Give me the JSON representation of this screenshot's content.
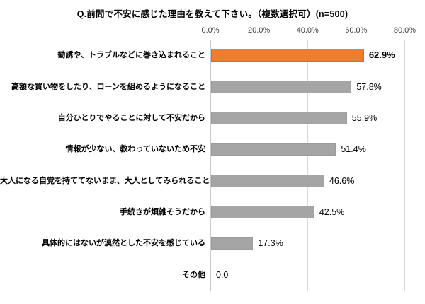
{
  "title": "Q.前問で不安に感じた理由を教えて下さい。（複数選択可）(n=500)",
  "chart_data": {
    "type": "bar",
    "orientation": "horizontal",
    "title": "Q.前問で不安に感じた理由を教えて下さい。（複数選択可）(n=500)",
    "sample_size_note": "n=500",
    "categories": [
      "勧誘や、トラブルなどに巻き込まれること",
      "高額な買い物をしたり、ローンを組めるようになること",
      "自分ひとりでやることに対して不安だから",
      "情報が少ない、教わっていないため不安",
      "大人になる自覚を持ててないまま、大人としてみられること",
      "手続きが煩雑そうだから",
      "具体的にはないが漠然とした不安を感じている",
      "その他"
    ],
    "values": [
      62.9,
      57.8,
      55.9,
      51.4,
      46.6,
      42.5,
      17.3,
      0.0
    ],
    "value_labels": [
      "62.9%",
      "57.8%",
      "55.9%",
      "51.4%",
      "46.6%",
      "42.5%",
      "17.3%",
      "0.0"
    ],
    "x_ticks": [
      "0.0%",
      "20.0%",
      "40.0%",
      "60.0%",
      "80.0%"
    ],
    "x_tick_values": [
      0,
      20,
      40,
      60,
      80
    ],
    "xlim": [
      0,
      80
    ],
    "grid": true,
    "legend": false,
    "highlight_index": 0,
    "colors": {
      "bar": "#A5A5A5",
      "highlight": "#ED7D31",
      "gridline": "#D9D9D9",
      "axis_line": "#C9C9C9",
      "text": "#000000",
      "background": "#FFFFFF"
    }
  }
}
